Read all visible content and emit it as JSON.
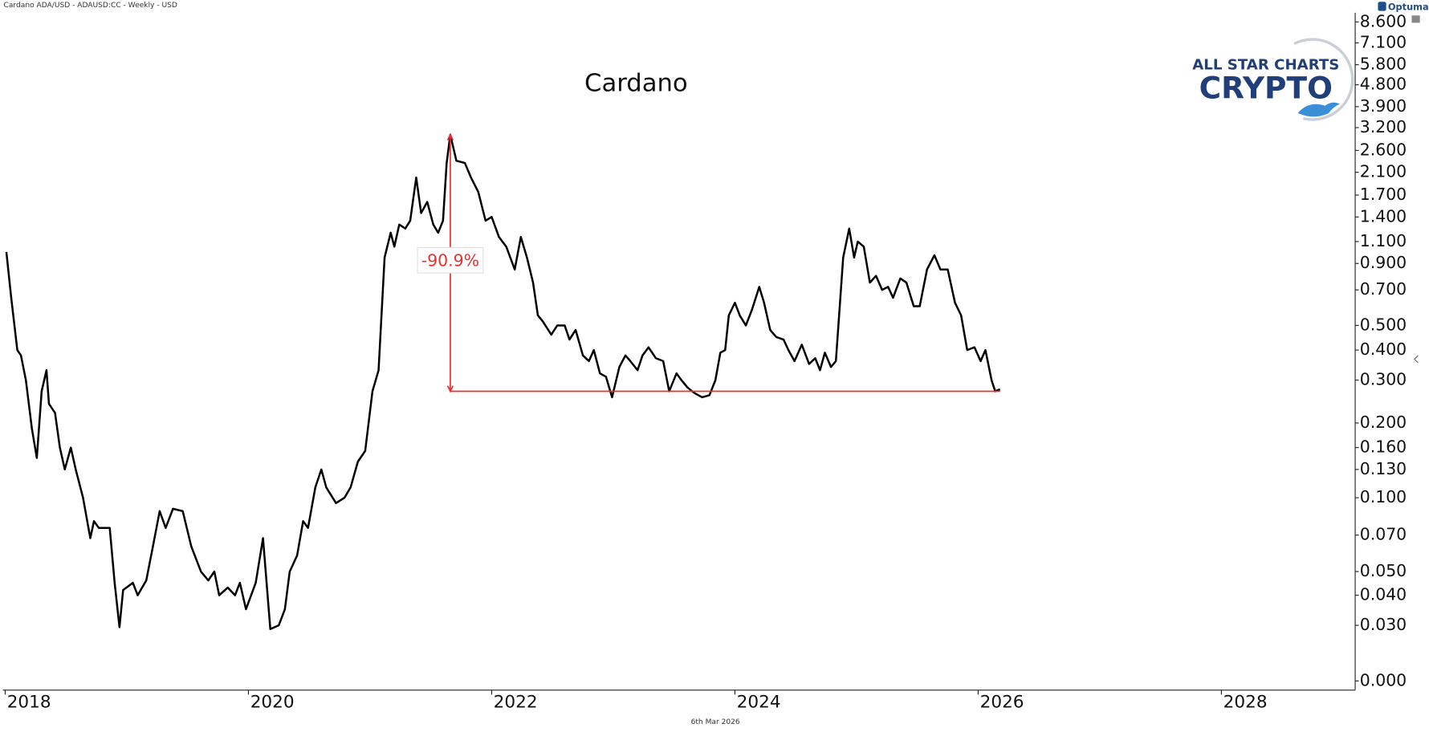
{
  "chart_data": {
    "type": "line",
    "header": "Cardano ADA/USD - ADAUSD:CC - Weekly - USD",
    "title": "Cardano",
    "date_label": "6th Mar 2026",
    "brand": {
      "vendor": "Optuma",
      "line1": "ALL STAR CHARTS",
      "line2": "CRYPTO"
    },
    "color": "#000000",
    "yscale": "log",
    "x": [
      2018.01,
      2018.05,
      2018.1,
      2018.13,
      2018.17,
      2018.22,
      2018.26,
      2018.3,
      2018.34,
      2018.36,
      2018.41,
      2018.45,
      2018.49,
      2018.54,
      2018.58,
      2018.64,
      2018.7,
      2018.73,
      2018.77,
      2018.86,
      2018.9,
      2018.94,
      2018.97,
      2019.05,
      2019.09,
      2019.16,
      2019.22,
      2019.27,
      2019.32,
      2019.38,
      2019.46,
      2019.53,
      2019.61,
      2019.67,
      2019.72,
      2019.76,
      2019.83,
      2019.89,
      2019.93,
      2019.98,
      2020.06,
      2020.12,
      2020.18,
      2020.25,
      2020.3,
      2020.34,
      2020.4,
      2020.45,
      2020.49,
      2020.55,
      2020.6,
      2020.64,
      2020.72,
      2020.79,
      2020.84,
      2020.9,
      2020.96,
      2021.02,
      2021.07,
      2021.12,
      2021.17,
      2021.2,
      2021.24,
      2021.29,
      2021.33,
      2021.38,
      2021.42,
      2021.47,
      2021.52,
      2021.56,
      2021.6,
      2021.63,
      2021.66,
      2021.71,
      2021.78,
      2021.83,
      2021.89,
      2021.95,
      2022.0,
      2022.06,
      2022.12,
      2022.19,
      2022.24,
      2022.29,
      2022.34,
      2022.38,
      2022.42,
      2022.49,
      2022.54,
      2022.6,
      2022.64,
      2022.69,
      2022.75,
      2022.8,
      2022.84,
      2022.89,
      2022.94,
      2022.99,
      2023.05,
      2023.1,
      2023.14,
      2023.2,
      2023.24,
      2023.29,
      2023.35,
      2023.41,
      2023.46,
      2023.52,
      2023.56,
      2023.61,
      2023.67,
      2023.73,
      2023.79,
      2023.84,
      2023.88,
      2023.92,
      2023.95,
      2024.0,
      2024.04,
      2024.09,
      2024.14,
      2024.2,
      2024.24,
      2024.29,
      2024.34,
      2024.4,
      2024.44,
      2024.49,
      2024.55,
      2024.61,
      2024.66,
      2024.7,
      2024.74,
      2024.79,
      2024.83,
      2024.89,
      2024.94,
      2024.98,
      2025.01,
      2025.06,
      2025.11,
      2025.16,
      2025.21,
      2025.26,
      2025.3,
      2025.36,
      2025.41,
      2025.47,
      2025.52,
      2025.58,
      2025.64,
      2025.69,
      2025.75,
      2025.81,
      2025.86,
      2025.91,
      2025.97,
      2026.02,
      2026.06,
      2026.11,
      2026.14,
      2026.18
    ],
    "values": [
      1.0,
      0.65,
      0.4,
      0.38,
      0.3,
      0.19,
      0.145,
      0.27,
      0.33,
      0.24,
      0.22,
      0.16,
      0.13,
      0.16,
      0.13,
      0.1,
      0.068,
      0.08,
      0.075,
      0.075,
      0.045,
      0.029,
      0.042,
      0.045,
      0.04,
      0.046,
      0.065,
      0.088,
      0.075,
      0.09,
      0.088,
      0.063,
      0.05,
      0.046,
      0.05,
      0.04,
      0.043,
      0.04,
      0.045,
      0.035,
      0.045,
      0.068,
      0.028,
      0.03,
      0.035,
      0.05,
      0.058,
      0.08,
      0.075,
      0.11,
      0.13,
      0.11,
      0.095,
      0.1,
      0.11,
      0.14,
      0.155,
      0.27,
      0.33,
      0.95,
      1.2,
      1.05,
      1.3,
      1.25,
      1.35,
      2.0,
      1.45,
      1.6,
      1.3,
      1.2,
      1.35,
      2.3,
      3.0,
      2.35,
      2.3,
      2.0,
      1.75,
      1.35,
      1.4,
      1.15,
      1.05,
      0.85,
      1.15,
      0.95,
      0.75,
      0.55,
      0.52,
      0.46,
      0.5,
      0.5,
      0.44,
      0.48,
      0.38,
      0.36,
      0.4,
      0.32,
      0.31,
      0.255,
      0.34,
      0.38,
      0.36,
      0.33,
      0.38,
      0.41,
      0.37,
      0.36,
      0.27,
      0.32,
      0.3,
      0.28,
      0.265,
      0.255,
      0.26,
      0.3,
      0.39,
      0.4,
      0.55,
      0.62,
      0.55,
      0.5,
      0.58,
      0.72,
      0.62,
      0.48,
      0.45,
      0.44,
      0.4,
      0.36,
      0.42,
      0.35,
      0.37,
      0.33,
      0.39,
      0.34,
      0.36,
      0.95,
      1.25,
      0.95,
      1.1,
      1.05,
      0.75,
      0.8,
      0.7,
      0.72,
      0.65,
      0.78,
      0.75,
      0.6,
      0.6,
      0.85,
      0.97,
      0.85,
      0.85,
      0.62,
      0.55,
      0.4,
      0.41,
      0.36,
      0.4,
      0.3,
      0.27,
      0.275
    ],
    "xlim": [
      2017.98,
      2029.1
    ],
    "xticks": [
      2018,
      2020,
      2022,
      2024,
      2026,
      2028
    ],
    "ylim": [
      0,
      8.6
    ],
    "yticks": [
      {
        "value": 0,
        "label": "0.000"
      },
      {
        "value": 0.03,
        "label": "0.030"
      },
      {
        "value": 0.04,
        "label": "0.040"
      },
      {
        "value": 0.05,
        "label": "0.050"
      },
      {
        "value": 0.07,
        "label": "0.070"
      },
      {
        "value": 0.1,
        "label": "0.100"
      },
      {
        "value": 0.13,
        "label": "0.130"
      },
      {
        "value": 0.16,
        "label": "0.160"
      },
      {
        "value": 0.2,
        "label": "0.200"
      },
      {
        "value": 0.3,
        "label": "0.300"
      },
      {
        "value": 0.4,
        "label": "0.400"
      },
      {
        "value": 0.5,
        "label": "0.500"
      },
      {
        "value": 0.7,
        "label": "0.700"
      },
      {
        "value": 0.9,
        "label": "0.900"
      },
      {
        "value": 1.1,
        "label": "1.100"
      },
      {
        "value": 1.4,
        "label": "1.400"
      },
      {
        "value": 1.7,
        "label": "1.700"
      },
      {
        "value": 2.1,
        "label": "2.100"
      },
      {
        "value": 2.6,
        "label": "2.600"
      },
      {
        "value": 3.2,
        "label": "3.200"
      },
      {
        "value": 3.9,
        "label": "3.900"
      },
      {
        "value": 4.8,
        "label": "4.800"
      },
      {
        "value": 5.8,
        "label": "5.800"
      },
      {
        "value": 7.1,
        "label": "7.100"
      },
      {
        "value": 8.6,
        "label": "8.600"
      }
    ],
    "annotation": {
      "text": "-90.9%",
      "x": 2021.66,
      "from": 3.0,
      "to": 0.27,
      "x_end": 2026.18,
      "color": "#e8312f"
    }
  }
}
